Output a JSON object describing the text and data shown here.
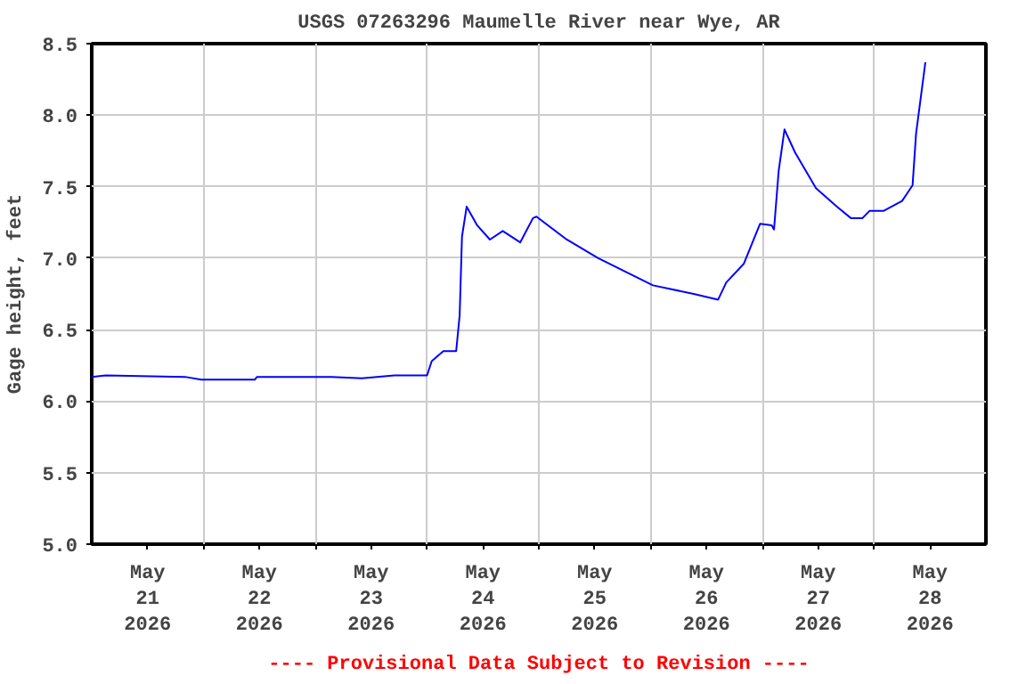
{
  "chart_data": {
    "type": "line",
    "title": "USGS 07263296 Maumelle River near Wye, AR",
    "ylabel": "Gage height, feet",
    "annotations": [
      "---- Provisional Data Subject to Revision ----"
    ],
    "x": [
      "2026-05-21T00:00",
      "2026-05-21T03:00",
      "2026-05-21T20:00",
      "2026-05-21T23:30",
      "2026-05-22T11:00",
      "2026-05-22T11:30",
      "2026-05-23T03:30",
      "2026-05-23T10:00",
      "2026-05-23T17:00",
      "2026-05-24T00:00",
      "2026-05-24T01:00",
      "2026-05-24T03:30",
      "2026-05-24T06:15",
      "2026-05-24T07:00",
      "2026-05-24T07:30",
      "2026-05-24T08:30",
      "2026-05-24T10:45",
      "2026-05-24T13:30",
      "2026-05-24T16:15",
      "2026-05-24T20:00",
      "2026-05-24T22:45",
      "2026-05-24T23:30",
      "2026-05-25T06:00",
      "2026-05-25T12:45",
      "2026-05-26T00:30",
      "2026-05-26T09:15",
      "2026-05-26T14:30",
      "2026-05-26T16:15",
      "2026-05-26T20:00",
      "2026-05-26T23:30",
      "2026-05-27T02:00",
      "2026-05-27T02:30",
      "2026-05-27T03:30",
      "2026-05-27T04:45",
      "2026-05-27T07:00",
      "2026-05-27T11:30",
      "2026-05-27T16:00",
      "2026-05-27T19:00",
      "2026-05-27T21:30",
      "2026-05-27T23:00",
      "2026-05-28T02:00",
      "2026-05-28T06:00",
      "2026-05-28T08:15",
      "2026-05-28T09:00",
      "2026-05-28T11:00"
    ],
    "series": [
      {
        "color": "#0000ff",
        "values": [
          6.17,
          6.18,
          6.17,
          6.15,
          6.15,
          6.17,
          6.17,
          6.16,
          6.18,
          6.18,
          6.28,
          6.35,
          6.35,
          6.6,
          7.15,
          7.36,
          7.23,
          7.13,
          7.19,
          7.11,
          7.28,
          7.29,
          7.13,
          7.0,
          6.81,
          6.75,
          6.71,
          6.83,
          6.96,
          7.24,
          7.23,
          7.2,
          7.61,
          7.9,
          7.74,
          7.49,
          7.36,
          7.28,
          7.28,
          7.33,
          7.33,
          7.4,
          7.51,
          7.87,
          8.37
        ]
      }
    ],
    "xlim": [
      "2026-05-21T00:00",
      "2026-05-29T00:00"
    ],
    "xticks": [
      {
        "value": "2026-05-21T12:00",
        "label": "May\n21\n2026"
      },
      {
        "value": "2026-05-22T12:00",
        "label": "May\n22\n2026"
      },
      {
        "value": "2026-05-23T12:00",
        "label": "May\n23\n2026"
      },
      {
        "value": "2026-05-24T12:00",
        "label": "May\n24\n2026"
      },
      {
        "value": "2026-05-25T12:00",
        "label": "May\n25\n2026"
      },
      {
        "value": "2026-05-26T12:00",
        "label": "May\n26\n2026"
      },
      {
        "value": "2026-05-27T12:00",
        "label": "May\n27\n2026"
      },
      {
        "value": "2026-05-28T12:00",
        "label": "May\n28\n2026"
      },
      {
        "value": "2026-05-22T00:00",
        "label": null
      },
      {
        "value": "2026-05-23T00:00",
        "label": null
      },
      {
        "value": "2026-05-24T00:00",
        "label": null
      },
      {
        "value": "2026-05-25T00:00",
        "label": null
      },
      {
        "value": "2026-05-26T00:00",
        "label": null
      },
      {
        "value": "2026-05-27T00:00",
        "label": null
      },
      {
        "value": "2026-05-28T00:00",
        "label": null
      }
    ],
    "ylim": [
      5.0,
      8.5
    ],
    "yticks": [
      {
        "value": 5.0,
        "label": "5.0"
      },
      {
        "value": 5.5,
        "label": "5.5"
      },
      {
        "value": 6.0,
        "label": "6.0"
      },
      {
        "value": 6.5,
        "label": "6.5"
      },
      {
        "value": 7.0,
        "label": "7.0"
      },
      {
        "value": 7.5,
        "label": "7.5"
      },
      {
        "value": 8.0,
        "label": "8.0"
      },
      {
        "value": 8.5,
        "label": "8.5"
      }
    ],
    "grid": true,
    "marker": "none",
    "line_style": "solid"
  }
}
